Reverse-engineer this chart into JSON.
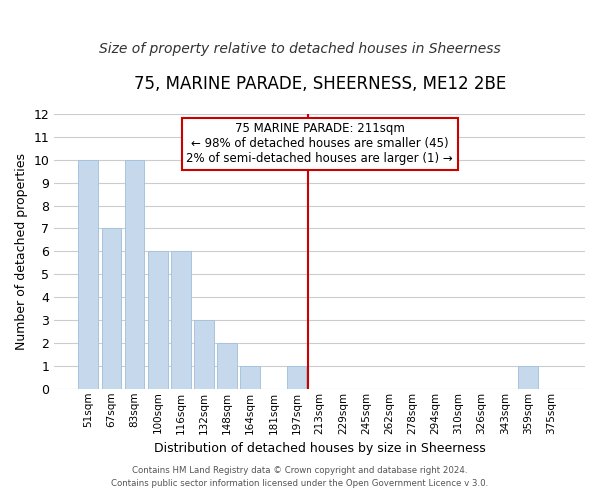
{
  "title": "75, MARINE PARADE, SHEERNESS, ME12 2BE",
  "subtitle": "Size of property relative to detached houses in Sheerness",
  "xlabel": "Distribution of detached houses by size in Sheerness",
  "ylabel": "Number of detached properties",
  "categories": [
    "51sqm",
    "67sqm",
    "83sqm",
    "100sqm",
    "116sqm",
    "132sqm",
    "148sqm",
    "164sqm",
    "181sqm",
    "197sqm",
    "213sqm",
    "229sqm",
    "245sqm",
    "262sqm",
    "278sqm",
    "294sqm",
    "310sqm",
    "326sqm",
    "343sqm",
    "359sqm",
    "375sqm"
  ],
  "values": [
    10,
    7,
    10,
    6,
    6,
    3,
    2,
    1,
    0,
    1,
    0,
    0,
    0,
    0,
    0,
    0,
    0,
    0,
    0,
    1,
    0
  ],
  "bar_color": "#c6d9ec",
  "bar_edge_color": "#a8c4dc",
  "ylim": [
    0,
    12
  ],
  "yticks": [
    0,
    1,
    2,
    3,
    4,
    5,
    6,
    7,
    8,
    9,
    10,
    11,
    12
  ],
  "vline_x": 9.5,
  "vline_color": "#cc0000",
  "annotation_title": "75 MARINE PARADE: 211sqm",
  "annotation_line1": "← 98% of detached houses are smaller (45)",
  "annotation_line2": "2% of semi-detached houses are larger (1) →",
  "footer_line1": "Contains HM Land Registry data © Crown copyright and database right 2024.",
  "footer_line2": "Contains public sector information licensed under the Open Government Licence v 3.0.",
  "background_color": "#ffffff",
  "grid_color": "#cccccc",
  "title_fontsize": 12,
  "subtitle_fontsize": 10
}
